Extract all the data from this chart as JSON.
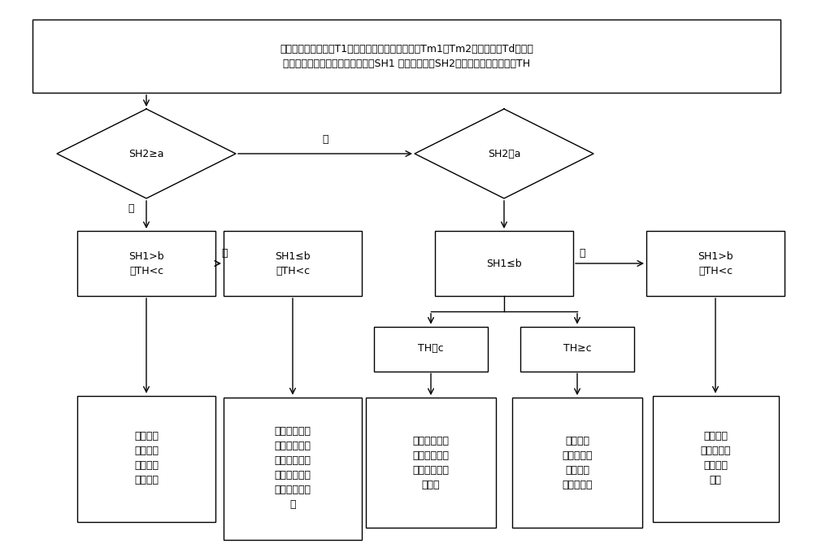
{
  "bg_color": "#ffffff",
  "top_box_text": "压缩机运行时每间隔T1分钟，检测补气阀前后温度Tm1及Tm2、排气温度Td、补气\n压力和排气压力，计算补气过热度SH1 、排气过热度SH2及补气阀前后温度差值TH",
  "d1_text": "SH2≥a",
  "d2_text": "SH2＜a",
  "label_no1": "否",
  "label_yes1": "是",
  "box_sh1_left_text": "SH1>b\n且TH<c",
  "box_sh1_no_text": "SH1≤b\n或TH<c",
  "label_no2": "否",
  "box_sh1_center_text": "SH1≤b",
  "box_sh1_right_text": "SH1>b\n且TH<c",
  "label_no3": "否",
  "box_th_lt_text": "TH＜c",
  "box_th_ge_text": "TH≥c",
  "result1_text": "判定补气\n未带液，\n可增大补\n气阀开度",
  "result2_text": "判定补气轻微\n带液，但未影\n响压缩机可靠\n性，可调小或\n保持补气阀开\n度",
  "result3_text": "判定补气轻微\n带液，可调小\n或保持补气阀\n开度；",
  "result4_text": "判定补气\n严重带液，\n需立即关\n闭补气阀；",
  "result5_text": "可判定补\n气未带液，\n吸气存在\n带液"
}
